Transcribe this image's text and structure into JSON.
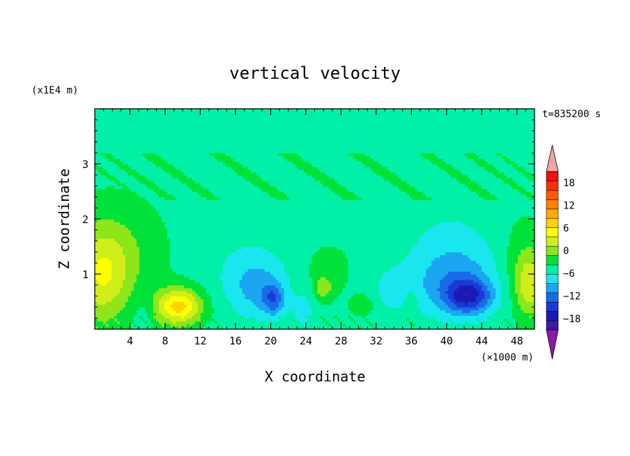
{
  "chart_data": {
    "type": "heatmap",
    "title": "vertical velocity",
    "xlabel": "X coordinate",
    "ylabel": "Z coordinate",
    "x_units": "(×1000 m)",
    "y_units": "(x1E4 m)",
    "time_label": "t=835200 s",
    "xlim": [
      0,
      50
    ],
    "ylim": [
      0,
      4
    ],
    "x_ticks": [
      4,
      8,
      12,
      16,
      20,
      24,
      28,
      32,
      36,
      40,
      44,
      48
    ],
    "y_ticks": [
      1,
      2,
      3
    ],
    "colorbar": {
      "min": -21,
      "max": 21,
      "step": 3,
      "tick_values": [
        18,
        12,
        6,
        0,
        -6,
        -12,
        -18
      ],
      "tick_labels": [
        "18",
        "12",
        "6",
        "0",
        "−6",
        "−12",
        "−18"
      ],
      "colors": [
        "#8a1aa8",
        "#3d1aa8",
        "#1a1ab4",
        "#1a3ad6",
        "#1a6ae8",
        "#1aa6f0",
        "#1ae6f0",
        "#00f0a8",
        "#00e23a",
        "#8ce61a",
        "#d2ee1a",
        "#ffff00",
        "#ffd200",
        "#ffaa00",
        "#ff8200",
        "#ff5a00",
        "#ff3000",
        "#f01010",
        "#f4a4a4"
      ]
    },
    "features": [
      {
        "name": "updraft",
        "x": 9.5,
        "z": 0.42,
        "value": 14,
        "sx": 2.6,
        "sz": 0.32
      },
      {
        "name": "updraft",
        "x": 0.8,
        "z": 0.95,
        "value": 8,
        "sx": 3.2,
        "sz": 0.85
      },
      {
        "name": "updraft",
        "x": 2.5,
        "z": 1.4,
        "value": 3.5,
        "sx": 5.0,
        "sz": 0.9
      },
      {
        "name": "updraft",
        "x": 49.5,
        "z": 0.8,
        "value": 8,
        "sx": 1.6,
        "sz": 0.55
      },
      {
        "name": "updraft",
        "x": 48.6,
        "z": 1.2,
        "value": 3,
        "sx": 2.4,
        "sz": 0.8
      },
      {
        "name": "updraft",
        "x": 26.0,
        "z": 0.75,
        "value": 5,
        "sx": 1.0,
        "sz": 0.2
      },
      {
        "name": "updraft",
        "x": 30.5,
        "z": 0.45,
        "value": 4,
        "sx": 1.3,
        "sz": 0.2
      },
      {
        "name": "updraft",
        "x": 36.0,
        "z": 0.45,
        "value": 3,
        "sx": 0.7,
        "sz": 0.3
      },
      {
        "name": "updraft",
        "x": 26.5,
        "z": 1.05,
        "value": 2,
        "sx": 2.8,
        "sz": 0.5
      },
      {
        "name": "downdraft",
        "x": 42.5,
        "z": 0.6,
        "value": -11,
        "sx": 2.6,
        "sz": 0.3
      },
      {
        "name": "downdraft",
        "x": 41.0,
        "z": 0.8,
        "value": -6,
        "sx": 4.5,
        "sz": 0.6
      },
      {
        "name": "downdraft",
        "x": 40.5,
        "z": 1.4,
        "value": -3,
        "sx": 5.5,
        "sz": 0.9
      },
      {
        "name": "downdraft",
        "x": 20.3,
        "z": 0.55,
        "value": -8,
        "sx": 1.2,
        "sz": 0.28
      },
      {
        "name": "downdraft",
        "x": 18.5,
        "z": 0.7,
        "value": -5,
        "sx": 3.2,
        "sz": 0.55
      },
      {
        "name": "downdraft",
        "x": 17.5,
        "z": 1.1,
        "value": -2.5,
        "sx": 4.5,
        "sz": 0.6
      },
      {
        "name": "downdraft",
        "x": 23.8,
        "z": 0.35,
        "value": -3,
        "sx": 1.4,
        "sz": 0.4
      },
      {
        "name": "downdraft",
        "x": 33.5,
        "z": 0.7,
        "value": -2.5,
        "sx": 3.0,
        "sz": 0.5
      },
      {
        "name": "downdraft",
        "x": 5.5,
        "z": 0.3,
        "value": -2,
        "sx": 1.2,
        "sz": 0.4
      }
    ]
  }
}
